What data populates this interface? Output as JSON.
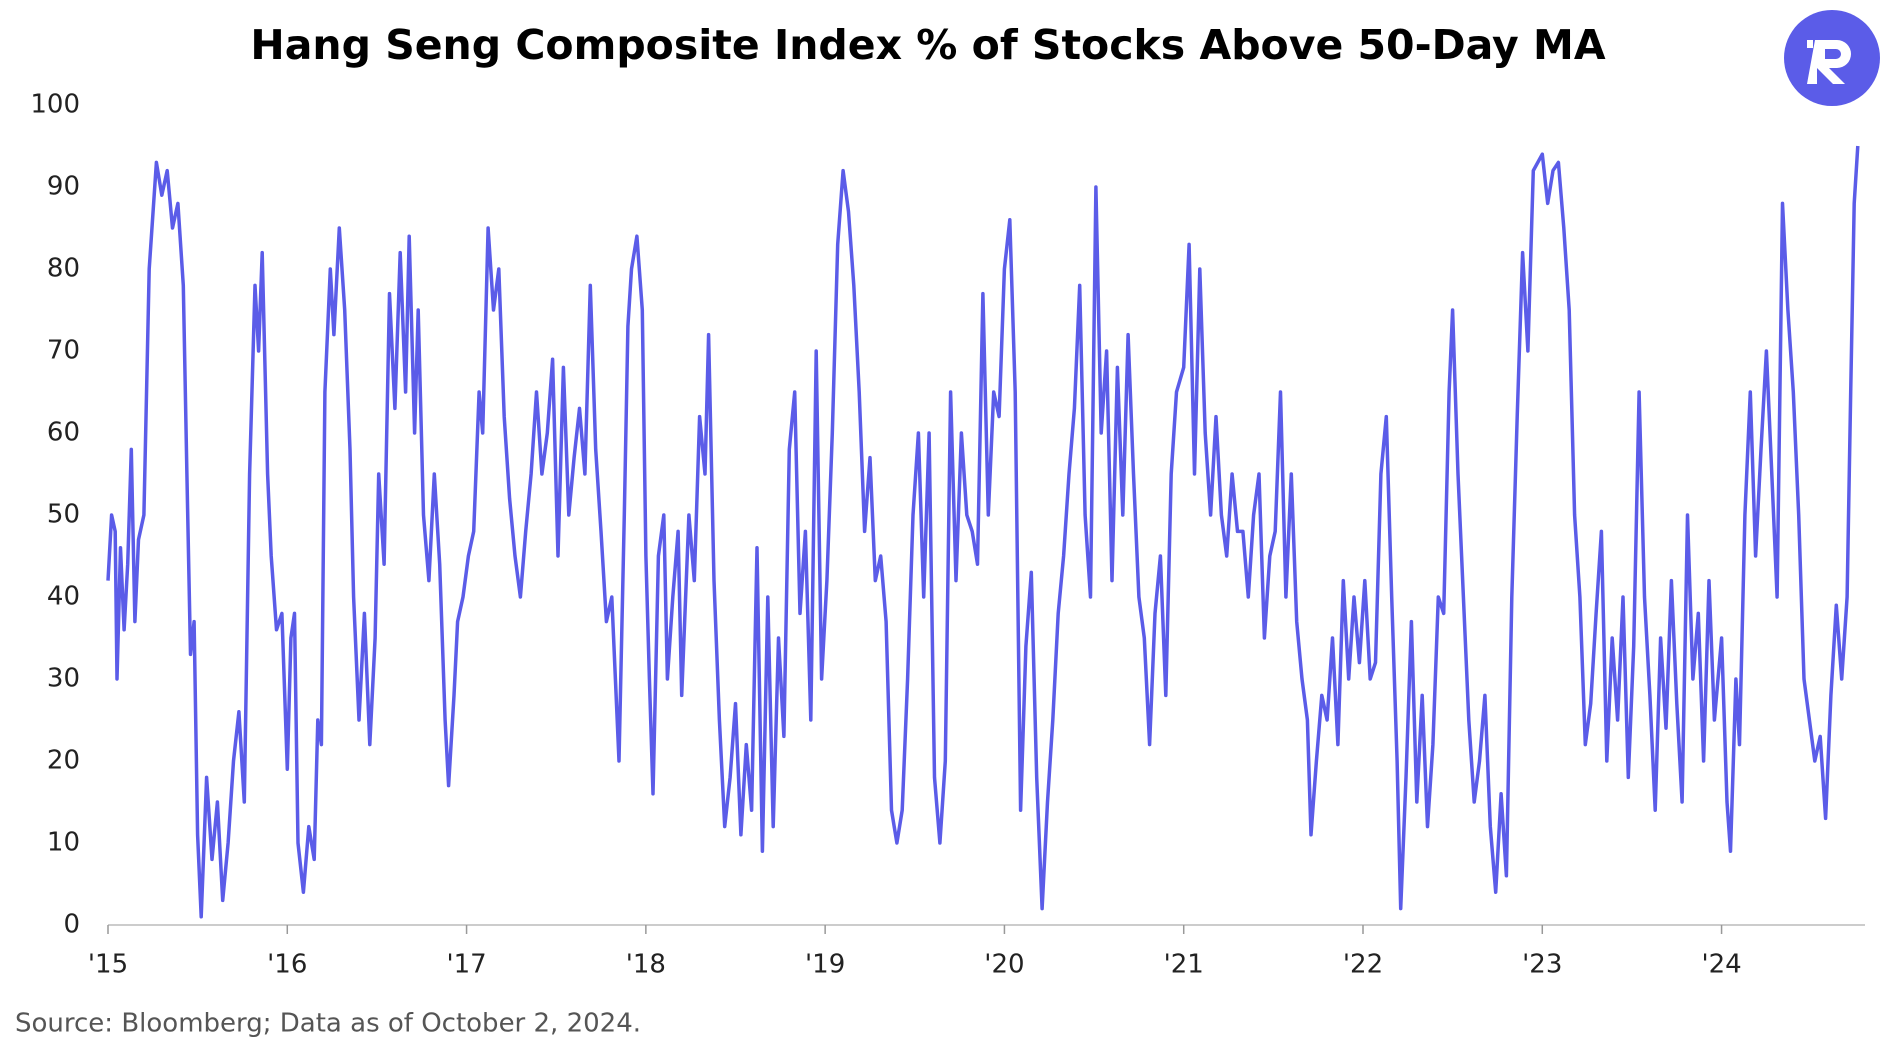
{
  "chart_data": {
    "type": "line",
    "title": "Hang Seng Composite Index % of Stocks Above 50-Day MA",
    "source": "Source: Bloomberg; Data as of October 2, 2024.",
    "color": "#5b5ce8",
    "xlim": [
      2015,
      2024.8
    ],
    "xticks": [
      {
        "value": 2015,
        "label": "'15"
      },
      {
        "value": 2016,
        "label": "'16"
      },
      {
        "value": 2017,
        "label": "'17"
      },
      {
        "value": 2018,
        "label": "'18"
      },
      {
        "value": 2019,
        "label": "'19"
      },
      {
        "value": 2020,
        "label": "'20"
      },
      {
        "value": 2021,
        "label": "'21"
      },
      {
        "value": 2022,
        "label": "'22"
      },
      {
        "value": 2023,
        "label": "'23"
      },
      {
        "value": 2024,
        "label": "'24"
      }
    ],
    "ylim": [
      0,
      100
    ],
    "yticks": [
      0,
      10,
      20,
      30,
      40,
      50,
      60,
      70,
      80,
      90,
      100
    ],
    "grid": false,
    "x": [
      2015.0,
      2015.02,
      2015.04,
      2015.05,
      2015.07,
      2015.09,
      2015.11,
      2015.13,
      2015.15,
      2015.17,
      2015.2,
      2015.23,
      2015.27,
      2015.3,
      2015.33,
      2015.36,
      2015.39,
      2015.42,
      2015.44,
      2015.46,
      2015.48,
      2015.5,
      2015.52,
      2015.55,
      2015.58,
      2015.61,
      2015.64,
      2015.67,
      2015.7,
      2015.73,
      2015.76,
      2015.79,
      2015.82,
      2015.84,
      2015.86,
      2015.89,
      2015.91,
      2015.94,
      2015.97,
      2016.0,
      2016.02,
      2016.04,
      2016.06,
      2016.09,
      2016.12,
      2016.15,
      2016.17,
      2016.19,
      2016.21,
      2016.24,
      2016.26,
      2016.29,
      2016.32,
      2016.35,
      2016.37,
      2016.4,
      2016.43,
      2016.46,
      2016.49,
      2016.51,
      2016.54,
      2016.57,
      2016.6,
      2016.63,
      2016.66,
      2016.68,
      2016.71,
      2016.73,
      2016.76,
      2016.79,
      2016.82,
      2016.85,
      2016.88,
      2016.9,
      2016.93,
      2016.95,
      2016.98,
      2017.01,
      2017.04,
      2017.07,
      2017.09,
      2017.12,
      2017.15,
      2017.18,
      2017.21,
      2017.24,
      2017.27,
      2017.3,
      2017.33,
      2017.36,
      2017.39,
      2017.42,
      2017.45,
      2017.48,
      2017.51,
      2017.54,
      2017.57,
      2017.6,
      2017.63,
      2017.66,
      2017.69,
      2017.72,
      2017.75,
      2017.78,
      2017.81,
      2017.83,
      2017.85,
      2017.88,
      2017.9,
      2017.92,
      2017.95,
      2017.98,
      2018.0,
      2018.02,
      2018.04,
      2018.07,
      2018.1,
      2018.12,
      2018.15,
      2018.18,
      2018.2,
      2018.24,
      2018.27,
      2018.3,
      2018.33,
      2018.35,
      2018.38,
      2018.41,
      2018.44,
      2018.47,
      2018.5,
      2018.53,
      2018.56,
      2018.59,
      2018.62,
      2018.65,
      2018.68,
      2018.71,
      2018.74,
      2018.77,
      2018.8,
      2018.83,
      2018.86,
      2018.89,
      2018.92,
      2018.95,
      2018.98,
      2019.01,
      2019.04,
      2019.07,
      2019.1,
      2019.13,
      2019.16,
      2019.19,
      2019.22,
      2019.25,
      2019.28,
      2019.31,
      2019.34,
      2019.37,
      2019.4,
      2019.43,
      2019.46,
      2019.49,
      2019.52,
      2019.55,
      2019.58,
      2019.61,
      2019.64,
      2019.67,
      2019.7,
      2019.73,
      2019.76,
      2019.79,
      2019.82,
      2019.85,
      2019.88,
      2019.91,
      2019.94,
      2019.97,
      2020.0,
      2020.03,
      2020.06,
      2020.09,
      2020.12,
      2020.15,
      2020.18,
      2020.21,
      2020.24,
      2020.27,
      2020.3,
      2020.33,
      2020.36,
      2020.39,
      2020.42,
      2020.45,
      2020.48,
      2020.51,
      2020.54,
      2020.57,
      2020.6,
      2020.63,
      2020.66,
      2020.69,
      2020.72,
      2020.75,
      2020.78,
      2020.81,
      2020.84,
      2020.87,
      2020.9,
      2020.93,
      2020.96,
      2021.0,
      2021.03,
      2021.06,
      2021.09,
      2021.12,
      2021.15,
      2021.18,
      2021.21,
      2021.24,
      2021.27,
      2021.3,
      2021.33,
      2021.36,
      2021.39,
      2021.42,
      2021.45,
      2021.48,
      2021.51,
      2021.54,
      2021.57,
      2021.6,
      2021.63,
      2021.66,
      2021.69,
      2021.71,
      2021.74,
      2021.77,
      2021.8,
      2021.83,
      2021.86,
      2021.89,
      2021.92,
      2021.95,
      2021.98,
      2022.01,
      2022.04,
      2022.07,
      2022.1,
      2022.13,
      2022.16,
      2022.19,
      2022.21,
      2022.24,
      2022.27,
      2022.3,
      2022.33,
      2022.36,
      2022.39,
      2022.42,
      2022.45,
      2022.48,
      2022.5,
      2022.53,
      2022.56,
      2022.59,
      2022.62,
      2022.65,
      2022.68,
      2022.71,
      2022.74,
      2022.77,
      2022.8,
      2022.83,
      2022.86,
      2022.89,
      2022.92,
      2022.95,
      2023.0,
      2023.03,
      2023.06,
      2023.09,
      2023.12,
      2023.15,
      2023.18,
      2023.21,
      2023.24,
      2023.27,
      2023.3,
      2023.33,
      2023.36,
      2023.39,
      2023.42,
      2023.45,
      2023.48,
      2023.51,
      2023.54,
      2023.57,
      2023.6,
      2023.63,
      2023.66,
      2023.69,
      2023.72,
      2023.75,
      2023.78,
      2023.81,
      2023.84,
      2023.87,
      2023.9,
      2023.93,
      2023.96,
      2024.0,
      2024.03,
      2024.05,
      2024.08,
      2024.1,
      2024.13,
      2024.16,
      2024.19,
      2024.22,
      2024.25,
      2024.28,
      2024.31,
      2024.34,
      2024.37,
      2024.4,
      2024.43,
      2024.46,
      2024.49,
      2024.52,
      2024.55,
      2024.58,
      2024.61,
      2024.64,
      2024.67,
      2024.7,
      2024.72,
      2024.74,
      2024.76
    ],
    "values": [
      42,
      50,
      48,
      30,
      46,
      36,
      44,
      58,
      37,
      47,
      50,
      80,
      93,
      89,
      92,
      85,
      88,
      78,
      55,
      33,
      37,
      11,
      1,
      18,
      8,
      15,
      3,
      10,
      20,
      26,
      15,
      55,
      78,
      70,
      82,
      55,
      45,
      36,
      38,
      19,
      35,
      38,
      10,
      4,
      12,
      8,
      25,
      22,
      65,
      80,
      72,
      85,
      75,
      58,
      40,
      25,
      38,
      22,
      35,
      55,
      44,
      77,
      63,
      82,
      65,
      84,
      60,
      75,
      50,
      42,
      55,
      44,
      25,
      17,
      28,
      37,
      40,
      45,
      48,
      65,
      60,
      85,
      75,
      80,
      62,
      52,
      45,
      40,
      48,
      55,
      65,
      55,
      60,
      69,
      45,
      68,
      50,
      57,
      63,
      55,
      78,
      58,
      48,
      37,
      40,
      30,
      20,
      50,
      73,
      80,
      84,
      75,
      45,
      30,
      16,
      45,
      50,
      30,
      40,
      48,
      28,
      50,
      42,
      62,
      55,
      72,
      42,
      25,
      12,
      18,
      27,
      11,
      22,
      14,
      46,
      9,
      40,
      12,
      35,
      23,
      58,
      65,
      38,
      48,
      25,
      70,
      30,
      42,
      60,
      83,
      92,
      87,
      78,
      65,
      48,
      57,
      42,
      45,
      37,
      14,
      10,
      14,
      30,
      50,
      60,
      40,
      60,
      18,
      10,
      20,
      65,
      42,
      60,
      50,
      48,
      44,
      77,
      50,
      65,
      62,
      80,
      86,
      65,
      14,
      34,
      43,
      18,
      2,
      15,
      25,
      38,
      45,
      55,
      63,
      78,
      50,
      40,
      90,
      60,
      70,
      42,
      68,
      50,
      72,
      55,
      40,
      35,
      22,
      38,
      45,
      28,
      55,
      65,
      68,
      83,
      55,
      80,
      60,
      50,
      62,
      50,
      45,
      55,
      48,
      48,
      40,
      50,
      55,
      35,
      45,
      48,
      65,
      40,
      55,
      37,
      30,
      25,
      11,
      20,
      28,
      25,
      35,
      22,
      42,
      30,
      40,
      32,
      42,
      30,
      32,
      55,
      62,
      40,
      20,
      2,
      18,
      37,
      15,
      28,
      12,
      22,
      40,
      38,
      65,
      75,
      55,
      40,
      25,
      15,
      20,
      28,
      12,
      4,
      16,
      6,
      40,
      62,
      82,
      70,
      92,
      94,
      88,
      92,
      93,
      85,
      75,
      50,
      40,
      22,
      27,
      38,
      48,
      20,
      35,
      25,
      40,
      18,
      34,
      65,
      40,
      28,
      14,
      35,
      24,
      42,
      27,
      15,
      50,
      30,
      38,
      20,
      42,
      25,
      35,
      15,
      9,
      30,
      22,
      50,
      65,
      45,
      58,
      70,
      55,
      40,
      88,
      75,
      65,
      50,
      30,
      25,
      20,
      23,
      13,
      28,
      39,
      30,
      40,
      65,
      88,
      95
    ]
  }
}
